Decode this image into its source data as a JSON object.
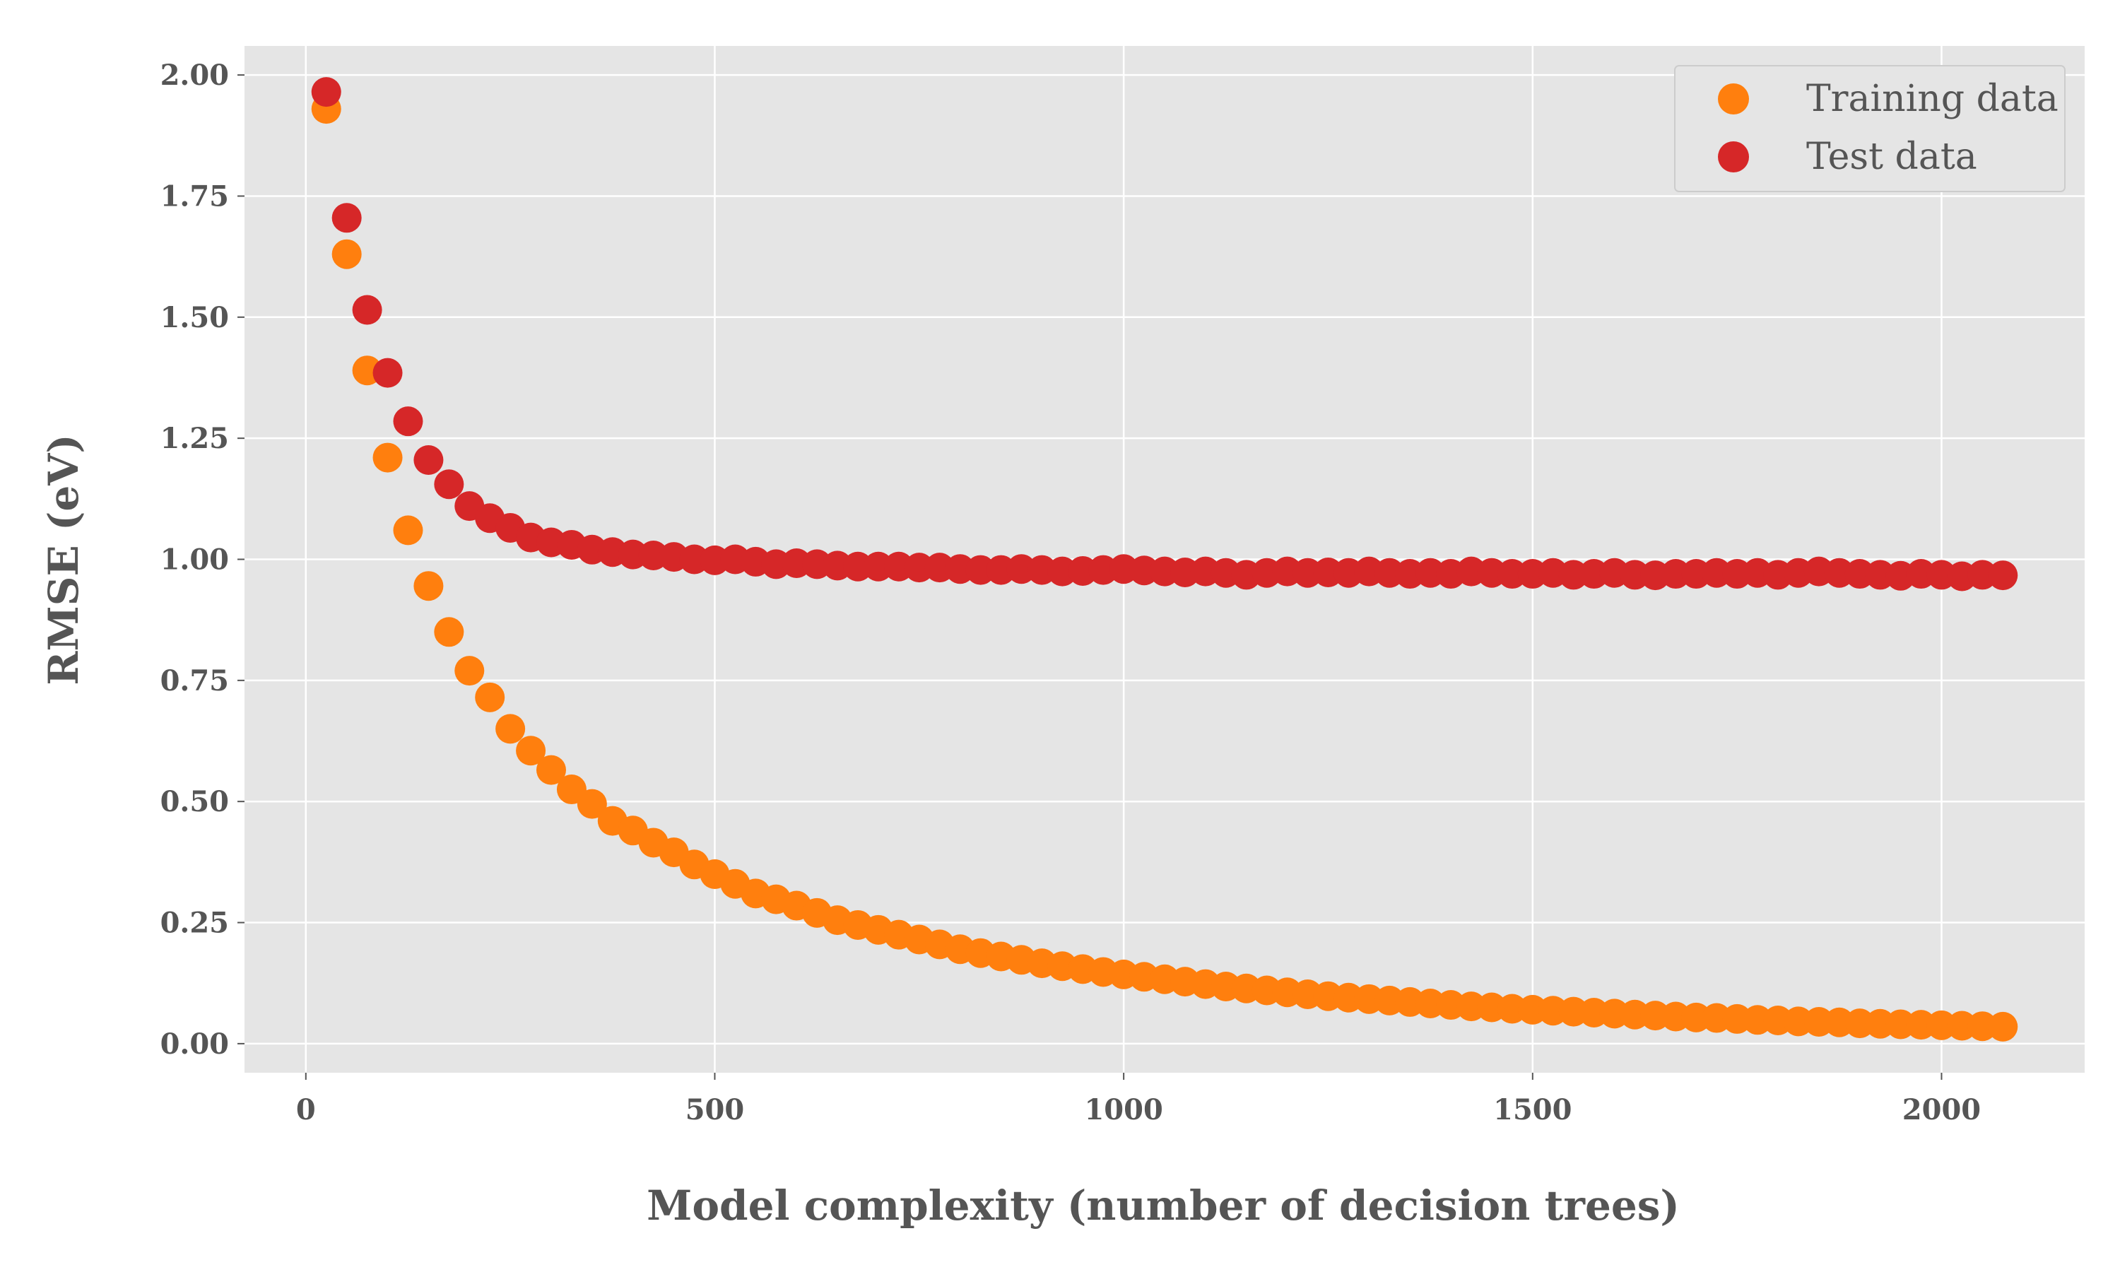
{
  "chart_data": {
    "type": "scatter",
    "xlabel": "Model complexity (number of decision trees)",
    "ylabel": "RMSE (eV)",
    "xlim": [
      -75,
      2175
    ],
    "ylim": [
      -0.06,
      2.06
    ],
    "xticks": [
      0,
      500,
      1000,
      1500,
      2000
    ],
    "xtick_labels": [
      "0",
      "500",
      "1000",
      "1500",
      "2000"
    ],
    "yticks": [
      0,
      0.25,
      0.5,
      0.75,
      1.0,
      1.25,
      1.5,
      1.75,
      2.0
    ],
    "ytick_labels": [
      "0.00",
      "0.25",
      "0.50",
      "0.75",
      "1.00",
      "1.25",
      "1.50",
      "1.75",
      "2.00"
    ],
    "grid": true,
    "legend_position": "top-right",
    "x": [
      25,
      50,
      75,
      100,
      125,
      150,
      175,
      200,
      225,
      250,
      275,
      300,
      325,
      350,
      375,
      400,
      425,
      450,
      475,
      500,
      525,
      550,
      575,
      600,
      625,
      650,
      675,
      700,
      725,
      750,
      775,
      800,
      825,
      850,
      875,
      900,
      925,
      950,
      975,
      1000,
      1025,
      1050,
      1075,
      1100,
      1125,
      1150,
      1175,
      1200,
      1225,
      1250,
      1275,
      1300,
      1325,
      1350,
      1375,
      1400,
      1425,
      1450,
      1475,
      1500,
      1525,
      1550,
      1575,
      1600,
      1625,
      1650,
      1675,
      1700,
      1725,
      1750,
      1775,
      1800,
      1825,
      1850,
      1875,
      1900,
      1925,
      1950,
      1975,
      2000,
      2025,
      2050,
      2075
    ],
    "series": [
      {
        "name": "Training data",
        "color": "#ff7f0e",
        "values": [
          1.93,
          1.63,
          1.39,
          1.21,
          1.06,
          0.945,
          0.85,
          0.77,
          0.715,
          0.65,
          0.605,
          0.565,
          0.525,
          0.495,
          0.46,
          0.44,
          0.415,
          0.395,
          0.37,
          0.35,
          0.33,
          0.31,
          0.298,
          0.285,
          0.27,
          0.255,
          0.245,
          0.235,
          0.225,
          0.215,
          0.205,
          0.195,
          0.187,
          0.18,
          0.173,
          0.166,
          0.16,
          0.154,
          0.148,
          0.143,
          0.138,
          0.133,
          0.128,
          0.123,
          0.118,
          0.114,
          0.11,
          0.106,
          0.102,
          0.098,
          0.095,
          0.092,
          0.089,
          0.086,
          0.083,
          0.08,
          0.077,
          0.075,
          0.072,
          0.07,
          0.068,
          0.066,
          0.064,
          0.062,
          0.06,
          0.058,
          0.056,
          0.054,
          0.053,
          0.051,
          0.049,
          0.048,
          0.046,
          0.045,
          0.044,
          0.042,
          0.041,
          0.04,
          0.039,
          0.038,
          0.037,
          0.036,
          0.035
        ]
      },
      {
        "name": "Test data",
        "color": "#d62728",
        "values": [
          1.965,
          1.705,
          1.515,
          1.385,
          1.285,
          1.205,
          1.155,
          1.11,
          1.085,
          1.065,
          1.045,
          1.035,
          1.03,
          1.02,
          1.015,
          1.01,
          1.008,
          1.005,
          1.0,
          0.998,
          1.0,
          0.995,
          0.99,
          0.992,
          0.99,
          0.987,
          0.985,
          0.985,
          0.985,
          0.983,
          0.983,
          0.98,
          0.978,
          0.978,
          0.98,
          0.978,
          0.975,
          0.976,
          0.978,
          0.98,
          0.977,
          0.975,
          0.973,
          0.975,
          0.972,
          0.968,
          0.972,
          0.975,
          0.972,
          0.973,
          0.972,
          0.975,
          0.972,
          0.97,
          0.972,
          0.97,
          0.975,
          0.972,
          0.97,
          0.97,
          0.972,
          0.968,
          0.97,
          0.972,
          0.968,
          0.967,
          0.97,
          0.97,
          0.972,
          0.97,
          0.972,
          0.968,
          0.972,
          0.975,
          0.972,
          0.97,
          0.968,
          0.966,
          0.97,
          0.968,
          0.965,
          0.968,
          0.967
        ]
      }
    ]
  }
}
